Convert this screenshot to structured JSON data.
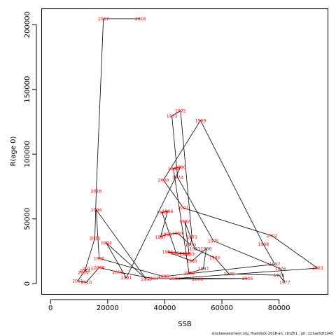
{
  "footer": "stockassessment.org, fhaddock-2018-an, r10251 , git: 121ae5df1d45",
  "chart_data": {
    "type": "line",
    "xlabel": "SSB",
    "ylabel": "R(age 0)",
    "xlim": [
      -3000,
      97000
    ],
    "ylim": [
      -8000,
      212000
    ],
    "xticks": [
      0,
      20000,
      40000,
      60000,
      80000
    ],
    "yticks": [
      0,
      50000,
      100000,
      150000,
      200000
    ],
    "grid": false,
    "line_color": "#000000",
    "label_color": "#ff0000",
    "series": [
      {
        "points": [
          {
            "label": "1963",
            "x": 47000,
            "y": 23000
          },
          {
            "label": "1964",
            "x": 44000,
            "y": 23500
          },
          {
            "label": "1965",
            "x": 39000,
            "y": 55000
          },
          {
            "label": "1966",
            "x": 41000,
            "y": 56000
          },
          {
            "label": "1967",
            "x": 38500,
            "y": 36000
          },
          {
            "label": "1968",
            "x": 40500,
            "y": 38000
          },
          {
            "label": "1969",
            "x": 44500,
            "y": 39000
          },
          {
            "label": "1970",
            "x": 49000,
            "y": 30000
          },
          {
            "label": "1971",
            "x": 49500,
            "y": 36000
          },
          {
            "label": "1972",
            "x": 45500,
            "y": 133500
          },
          {
            "label": "1973",
            "x": 42500,
            "y": 129500
          },
          {
            "label": "1974",
            "x": 44500,
            "y": 82000
          },
          {
            "label": "1975",
            "x": 57000,
            "y": 33000
          },
          {
            "label": "1976",
            "x": 80500,
            "y": 11500
          },
          {
            "label": "1977",
            "x": 82000,
            "y": 1000
          },
          {
            "label": "1978",
            "x": 80000,
            "y": 6500
          },
          {
            "label": "1979",
            "x": 62500,
            "y": 7500
          },
          {
            "label": "1980",
            "x": 57500,
            "y": 20000
          },
          {
            "label": "1981",
            "x": 50500,
            "y": 27000
          },
          {
            "label": "1982",
            "x": 47000,
            "y": 48000
          },
          {
            "label": "1983",
            "x": 48500,
            "y": 23000
          },
          {
            "label": "1984",
            "x": 41000,
            "y": 24500
          },
          {
            "label": "1985",
            "x": 49500,
            "y": 17500
          },
          {
            "label": "1986",
            "x": 54500,
            "y": 27000
          },
          {
            "label": "1987",
            "x": 53500,
            "y": 11500
          },
          {
            "label": "1988",
            "x": 48500,
            "y": 8000
          },
          {
            "label": "1989",
            "x": 43000,
            "y": 89000
          },
          {
            "label": "1990",
            "x": 45500,
            "y": 90000
          },
          {
            "label": "1991",
            "x": 26500,
            "y": 4500
          },
          {
            "label": "1992",
            "x": 19500,
            "y": 31500
          },
          {
            "label": "1993",
            "x": 33500,
            "y": 3500
          },
          {
            "label": "1994",
            "x": 16000,
            "y": 57000
          },
          {
            "label": "1995",
            "x": 17000,
            "y": 19500
          },
          {
            "label": "1996",
            "x": 39500,
            "y": 5500
          },
          {
            "label": "1997",
            "x": 78500,
            "y": 15000
          },
          {
            "label": "1998",
            "x": 74500,
            "y": 30500
          },
          {
            "label": "1999",
            "x": 52500,
            "y": 126000
          },
          {
            "label": "2000",
            "x": 39500,
            "y": 80000
          },
          {
            "label": "2001",
            "x": 46500,
            "y": 58500
          },
          {
            "label": "2002",
            "x": 77500,
            "y": 37000
          },
          {
            "label": "2003",
            "x": 93500,
            "y": 12000
          },
          {
            "label": "2004",
            "x": 43500,
            "y": 4000
          },
          {
            "label": "2005",
            "x": 69000,
            "y": 4000
          },
          {
            "label": "2006",
            "x": 51500,
            "y": 3500
          },
          {
            "label": "2007",
            "x": 36000,
            "y": 4000
          },
          {
            "label": "2008",
            "x": 23500,
            "y": 9000
          },
          {
            "label": "2009",
            "x": 17000,
            "y": 12500
          },
          {
            "label": "2010",
            "x": 12500,
            "y": 1000
          },
          {
            "label": "2011",
            "x": 9500,
            "y": 2000
          },
          {
            "label": "2012",
            "x": 11500,
            "y": 8500
          },
          {
            "label": "2013",
            "x": 13000,
            "y": 11500
          },
          {
            "label": "2014",
            "x": 12000,
            "y": 10000
          },
          {
            "label": "2015",
            "x": 15500,
            "y": 35000
          },
          {
            "label": "2016",
            "x": 16000,
            "y": 71500
          },
          {
            "label": "2017",
            "x": 18500,
            "y": 204500
          },
          {
            "label": "2018",
            "x": 31500,
            "y": 204500
          }
        ]
      }
    ]
  }
}
